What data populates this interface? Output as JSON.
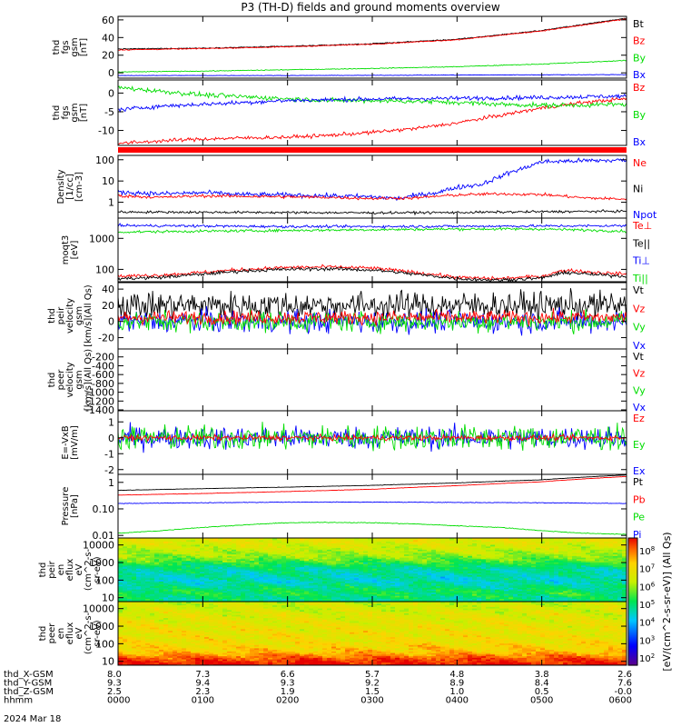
{
  "title": "P3 (TH-D) fields and ground moments overview",
  "colors": {
    "black": "#000000",
    "red": "#ff0000",
    "green": "#00dd00",
    "blue": "#0000ff"
  },
  "chart_data": [
    {
      "type": "line",
      "id": "p1",
      "ylabel": [
        "thd",
        "fgs",
        "gsm",
        "[nT]"
      ],
      "yticks": [
        {
          "v": 60,
          "t": "60"
        },
        {
          "v": 40,
          "t": "40"
        },
        {
          "v": 20,
          "t": "20"
        },
        {
          "v": 0,
          "t": "0"
        }
      ],
      "ylim": [
        -6,
        64
      ],
      "legend": [
        {
          "t": "Bt",
          "c": "black"
        },
        {
          "t": "Bz",
          "c": "red"
        },
        {
          "t": "By",
          "c": "green"
        },
        {
          "t": "Bx",
          "c": "blue"
        }
      ],
      "series": [
        {
          "name": "Bt",
          "color": "black",
          "x": [
            0,
            1,
            2,
            3,
            4,
            5,
            6
          ],
          "y": [
            27,
            28,
            30,
            33,
            38,
            48,
            62
          ],
          "noise": 0.4
        },
        {
          "name": "Bz",
          "color": "red",
          "x": [
            0,
            1,
            2,
            3,
            4,
            5,
            6
          ],
          "y": [
            26,
            27.5,
            29.5,
            32.5,
            37.5,
            47.5,
            61
          ],
          "noise": 0.4
        },
        {
          "name": "By",
          "color": "green",
          "x": [
            0,
            1,
            2,
            3,
            4,
            5,
            6
          ],
          "y": [
            1,
            2,
            3.5,
            5,
            7,
            10,
            14
          ],
          "noise": 0.3
        },
        {
          "name": "Bx",
          "color": "blue",
          "x": [
            0,
            1,
            2,
            3,
            4,
            5,
            6
          ],
          "y": [
            -3,
            -3,
            -3,
            -2.8,
            -2.5,
            -2.2,
            -2
          ],
          "noise": 0.2
        }
      ]
    },
    {
      "type": "line",
      "id": "p2",
      "ylabel": [
        "thd",
        "fgs",
        "gsm",
        "[nT]"
      ],
      "yticks": [
        {
          "v": 0,
          "t": "0"
        },
        {
          "v": -5,
          "t": "-5"
        },
        {
          "v": -10,
          "t": "-10"
        }
      ],
      "ylim": [
        -14,
        3.5
      ],
      "legend": [
        {
          "t": "Bz",
          "c": "red"
        },
        {
          "t": "By",
          "c": "green"
        },
        {
          "t": "Bx",
          "c": "blue"
        }
      ],
      "series": [
        {
          "name": "Bz",
          "color": "red",
          "x": [
            0,
            0.5,
            1,
            1.5,
            2,
            2.5,
            3,
            3.5,
            4,
            4.5,
            5,
            5.5,
            6
          ],
          "y": [
            -13.5,
            -12.8,
            -12.3,
            -12,
            -11.8,
            -11.3,
            -10.5,
            -9.5,
            -8,
            -6,
            -4,
            -2.5,
            -1.5
          ],
          "noise": 0.35
        },
        {
          "name": "By",
          "color": "green",
          "x": [
            0,
            0.5,
            1,
            1.5,
            2,
            2.5,
            3,
            3.5,
            4,
            4.5,
            5,
            5.5,
            6
          ],
          "y": [
            1.5,
            0.5,
            -0.5,
            -1,
            -1.5,
            -2,
            -2,
            -2.2,
            -2.5,
            -3,
            -3.3,
            -3.2,
            -3.0
          ],
          "noise": 0.45
        },
        {
          "name": "Bx",
          "color": "blue",
          "x": [
            0,
            0.5,
            1,
            1.5,
            2,
            2.5,
            3,
            3.5,
            4,
            4.5,
            5,
            5.5,
            6
          ],
          "y": [
            -4.5,
            -3.5,
            -3,
            -2.5,
            -2,
            -1.8,
            -1.6,
            -1.5,
            -1.4,
            -1.3,
            -1.2,
            -1.0,
            -0.8
          ],
          "noise": 0.4
        }
      ]
    },
    {
      "type": "line",
      "id": "p3",
      "log": true,
      "ylabel": [
        "Density",
        "[1/cc]",
        "[cm-3]"
      ],
      "yticks": [
        {
          "v": 100,
          "t": "100"
        },
        {
          "v": 10,
          "t": "10"
        },
        {
          "v": 1,
          "t": "1"
        }
      ],
      "ylim": [
        0.18,
        160
      ],
      "legend": [
        {
          "t": "Ne",
          "c": "red"
        },
        {
          "t": "Ni",
          "c": "black"
        },
        {
          "t": "Npot",
          "c": "blue"
        }
      ],
      "series": [
        {
          "name": "Npot",
          "color": "blue",
          "x": [
            0,
            0.5,
            1,
            1.5,
            2,
            2.5,
            3,
            3.3,
            3.5,
            3.8,
            4,
            4.3,
            4.5,
            4.8,
            5,
            5.5,
            6
          ],
          "y": [
            3,
            2.5,
            2.8,
            2.3,
            2.2,
            2,
            1.8,
            1.5,
            2,
            3,
            5,
            7,
            15,
            40,
            80,
            90,
            95
          ],
          "noise": 0.08
        },
        {
          "name": "Ne",
          "color": "red",
          "x": [
            0,
            0.5,
            1,
            1.5,
            2,
            2.5,
            3,
            3.5,
            4,
            4.5,
            5,
            5.5,
            6
          ],
          "y": [
            2,
            1.7,
            2,
            1.9,
            1.8,
            1.7,
            1.5,
            1.6,
            2.2,
            2.5,
            2.3,
            1.6,
            1.4
          ],
          "noise": 0.05
        },
        {
          "name": "Ni",
          "color": "black",
          "x": [
            0,
            1,
            2,
            3,
            4,
            5,
            6
          ],
          "y": [
            0.35,
            0.34,
            0.33,
            0.32,
            0.33,
            0.36,
            0.38
          ],
          "noise": 0.04
        }
      ]
    },
    {
      "type": "line",
      "id": "p4",
      "log": true,
      "ylabel": [
        "moqt3",
        "[eV]"
      ],
      "yticks": [
        {
          "v": 1000,
          "t": "1000"
        },
        {
          "v": 100,
          "t": "100"
        }
      ],
      "ylim": [
        40,
        4500
      ],
      "legend": [
        {
          "t": "Te⊥",
          "c": "red"
        },
        {
          "t": "Te||",
          "c": "black"
        },
        {
          "t": "Ti⊥",
          "c": "blue"
        },
        {
          "t": "Ti||",
          "c": "green"
        }
      ],
      "series": [
        {
          "name": "Ti⊥",
          "color": "blue",
          "x": [
            0,
            1,
            2,
            3,
            4,
            5,
            6
          ],
          "y": [
            2600,
            2500,
            2400,
            2400,
            2450,
            2500,
            2550
          ],
          "noise": 0.03
        },
        {
          "name": "Ti||",
          "color": "green",
          "x": [
            0,
            1,
            2,
            3,
            4,
            5,
            6
          ],
          "y": [
            1600,
            1700,
            1800,
            1900,
            2000,
            2000,
            1700
          ],
          "noise": 0.03
        },
        {
          "name": "Te⊥",
          "color": "red",
          "x": [
            0,
            0.5,
            1,
            1.5,
            2,
            2.5,
            3,
            3.5,
            4,
            4.5,
            5,
            5.3,
            5.6,
            6
          ],
          "y": [
            60,
            65,
            80,
            100,
            115,
            120,
            110,
            80,
            55,
            50,
            60,
            95,
            80,
            70
          ],
          "noise": 0.04
        },
        {
          "name": "Te||",
          "color": "black",
          "x": [
            0,
            0.5,
            1,
            1.5,
            2,
            2.5,
            3,
            3.5,
            4,
            4.5,
            5,
            5.3,
            5.6,
            6
          ],
          "y": [
            50,
            55,
            70,
            90,
            100,
            105,
            95,
            70,
            50,
            45,
            52,
            80,
            68,
            60
          ],
          "noise": 0.04
        }
      ]
    },
    {
      "type": "line",
      "id": "p5",
      "ylabel": [
        "thd",
        "peir",
        "velocity",
        "gsm",
        "[km/s](All Qs)"
      ],
      "yticks": [
        {
          "v": 40,
          "t": "40"
        },
        {
          "v": 20,
          "t": "20"
        },
        {
          "v": 0,
          "t": "0"
        },
        {
          "v": -20,
          "t": "-20"
        }
      ],
      "ylim": [
        -34,
        48
      ],
      "legend": [
        {
          "t": "Vt",
          "c": "black"
        },
        {
          "t": "Vz",
          "c": "red"
        },
        {
          "t": "Vy",
          "c": "green"
        },
        {
          "t": "Vx",
          "c": "blue"
        }
      ],
      "series": [
        {
          "name": "Vt",
          "color": "black",
          "x": [
            0,
            6
          ],
          "y": [
            20,
            20
          ],
          "noise": 12
        },
        {
          "name": "Vx",
          "color": "blue",
          "x": [
            0,
            6
          ],
          "y": [
            0,
            0
          ],
          "noise": 10
        },
        {
          "name": "Vy",
          "color": "green",
          "x": [
            0,
            6
          ],
          "y": [
            0,
            0
          ],
          "noise": 9
        },
        {
          "name": "Vz",
          "color": "red",
          "x": [
            0,
            6
          ],
          "y": [
            5,
            5
          ],
          "noise": 6
        }
      ]
    },
    {
      "type": "line",
      "id": "p6",
      "ylabel": [
        "thd",
        "peer",
        "velocity",
        "gsm",
        "[km/s](All Qs)"
      ],
      "yticks": [
        {
          "v": -200,
          "t": "-200"
        },
        {
          "v": -400,
          "t": "-400"
        },
        {
          "v": -600,
          "t": "-600"
        },
        {
          "v": -800,
          "t": "-800"
        },
        {
          "v": -1000,
          "t": "-1000"
        },
        {
          "v": -1200,
          "t": "-1200"
        },
        {
          "v": -1400,
          "t": "-1400"
        }
      ],
      "ylim": [
        -1420,
        -20
      ],
      "legend": [
        {
          "t": "Vt",
          "c": "black"
        },
        {
          "t": "Vz",
          "c": "red"
        },
        {
          "t": "Vy",
          "c": "green"
        },
        {
          "t": "Vx",
          "c": "blue"
        }
      ],
      "series": []
    },
    {
      "type": "line",
      "id": "p7",
      "ylabel": [
        "E=-VxB",
        "[mV/m]"
      ],
      "yticks": [
        {
          "v": 1,
          "t": "1"
        },
        {
          "v": 0,
          "t": "0"
        },
        {
          "v": -1,
          "t": "-1"
        },
        {
          "v": -2,
          "t": "-2"
        }
      ],
      "ylim": [
        -2.3,
        1.7
      ],
      "legend": [
        {
          "t": "Ez",
          "c": "red"
        },
        {
          "t": "Ey",
          "c": "green"
        },
        {
          "t": "Ex",
          "c": "blue"
        }
      ],
      "series": [
        {
          "name": "Ex",
          "color": "blue",
          "x": [
            0,
            6
          ],
          "y": [
            0,
            0
          ],
          "noise": 0.5
        },
        {
          "name": "Ey",
          "color": "green",
          "x": [
            0,
            6
          ],
          "y": [
            0,
            0
          ],
          "noise": 0.55
        },
        {
          "name": "Ez",
          "color": "red",
          "x": [
            0,
            6
          ],
          "y": [
            0,
            0
          ],
          "noise": 0.12
        }
      ]
    },
    {
      "type": "line",
      "id": "p8",
      "log": true,
      "ylabel": [
        "Pressure",
        "[nPa]"
      ],
      "yticks": [
        {
          "v": 1,
          "t": "1"
        },
        {
          "v": 0.1,
          "t": "0.10"
        },
        {
          "v": 0.01,
          "t": "0.01"
        }
      ],
      "ylim": [
        0.008,
        2
      ],
      "legend": [
        {
          "t": "Pt",
          "c": "black"
        },
        {
          "t": "Pb",
          "c": "red"
        },
        {
          "t": "Pe",
          "c": "green"
        },
        {
          "t": "Pi",
          "c": "blue"
        }
      ],
      "series": [
        {
          "name": "Pt",
          "color": "black",
          "x": [
            0,
            1,
            2,
            3,
            4,
            5,
            6
          ],
          "y": [
            0.5,
            0.58,
            0.66,
            0.77,
            0.95,
            1.25,
            1.9
          ],
          "noise": 0.005
        },
        {
          "name": "Pb",
          "color": "red",
          "x": [
            0,
            1,
            2,
            3,
            4,
            5,
            6
          ],
          "y": [
            0.33,
            0.38,
            0.45,
            0.55,
            0.75,
            1.05,
            1.65
          ],
          "noise": 0.005
        },
        {
          "name": "Pi",
          "color": "blue",
          "x": [
            0,
            1,
            2,
            3,
            4,
            5,
            6
          ],
          "y": [
            0.16,
            0.17,
            0.18,
            0.18,
            0.175,
            0.17,
            0.16
          ],
          "noise": 0.008
        },
        {
          "name": "Pe",
          "color": "green",
          "x": [
            0,
            0.5,
            1,
            1.5,
            2,
            2.5,
            3,
            3.5,
            4,
            4.5,
            5,
            5.5,
            6
          ],
          "y": [
            0.012,
            0.015,
            0.02,
            0.025,
            0.03,
            0.031,
            0.03,
            0.027,
            0.023,
            0.02,
            0.015,
            0.012,
            0.011
          ],
          "noise": 0.01
        }
      ]
    },
    {
      "type": "heatmap",
      "id": "p9",
      "log": true,
      "ylabel": [
        "thd",
        "peir",
        "en",
        "eflux",
        "eV",
        "(cm^2-s-",
        "sr-eV)"
      ],
      "yticks": [
        {
          "v": 10000,
          "t": "10000"
        },
        {
          "v": 1000,
          "t": "1000"
        },
        {
          "v": 100,
          "t": "100"
        },
        {
          "v": 10,
          "t": "10"
        }
      ],
      "ylim": [
        6,
        25000
      ],
      "zrange": [
        2,
        8
      ],
      "profile": [
        {
          "v": 6,
          "z": 4.6
        },
        {
          "v": 20,
          "z": 5.0
        },
        {
          "v": 100,
          "z": 4.4
        },
        {
          "v": 500,
          "z": 4.7
        },
        {
          "v": 2000,
          "z": 5.6
        },
        {
          "v": 8000,
          "z": 6.1
        },
        {
          "v": 25000,
          "z": 6.3
        }
      ]
    },
    {
      "type": "heatmap",
      "id": "p10",
      "log": true,
      "ylabel": [
        "thd",
        "peer",
        "en",
        "eflux",
        "eV",
        "(cm^2-s-",
        "sr-eV)"
      ],
      "yticks": [
        {
          "v": 10000,
          "t": "10000"
        },
        {
          "v": 1000,
          "t": "1000"
        },
        {
          "v": 100,
          "t": "100"
        },
        {
          "v": 10,
          "t": "10"
        }
      ],
      "ylim": [
        6,
        25000
      ],
      "zrange": [
        2,
        8
      ],
      "profile": [
        {
          "v": 6,
          "z": 8.0
        },
        {
          "v": 15,
          "z": 7.6
        },
        {
          "v": 40,
          "z": 6.8
        },
        {
          "v": 150,
          "z": 6.5
        },
        {
          "v": 800,
          "z": 6.4
        },
        {
          "v": 5000,
          "z": 6.2
        },
        {
          "v": 25000,
          "z": 6.0
        }
      ]
    }
  ],
  "colorbar": {
    "ticks": [
      {
        "e": "8"
      },
      {
        "e": "7"
      },
      {
        "e": "6"
      },
      {
        "e": "5"
      },
      {
        "e": "4"
      },
      {
        "e": "3"
      },
      {
        "e": "2"
      }
    ],
    "label": "[eV/(cm^2-s-sr-eV)] (All Qs)"
  },
  "axis": {
    "rows": [
      {
        "label": "thd_X-GSM",
        "values": [
          "8.0",
          "7.3",
          "6.6",
          "5.7",
          "4.8",
          "3.8",
          "2.6"
        ]
      },
      {
        "label": "thd_Y-GSM",
        "values": [
          "9.3",
          "9.4",
          "9.3",
          "9.2",
          "8.9",
          "8.4",
          "7.6"
        ]
      },
      {
        "label": "thd_Z-GSM",
        "values": [
          "2.5",
          "2.3",
          "1.9",
          "1.5",
          "1.0",
          "0.5",
          "-0.0"
        ]
      },
      {
        "label": "hhmm",
        "values": [
          "0000",
          "0100",
          "0200",
          "0300",
          "0400",
          "0500",
          "0600"
        ]
      }
    ],
    "date": "2024 Mar 18",
    "xlim": [
      0,
      6
    ]
  }
}
